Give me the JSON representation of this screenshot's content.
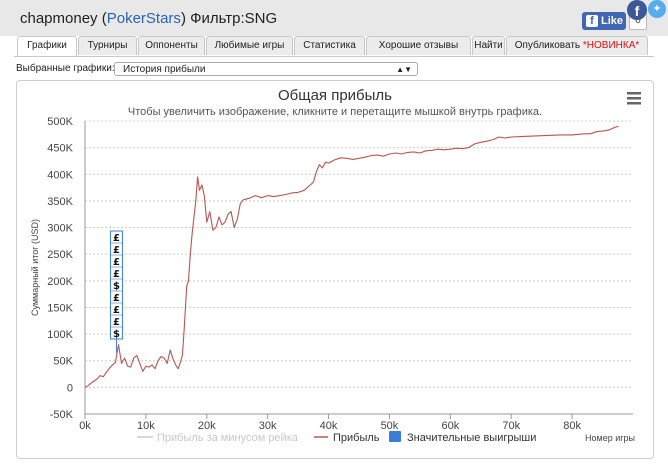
{
  "header": {
    "user": "chapmoney",
    "network": "PokerStars",
    "filter_label": "Фильтр:SNG",
    "fb_like_label": "Like",
    "fb_like_count": "0"
  },
  "tabs": [
    {
      "label": "Графики",
      "active": true
    },
    {
      "label": "Турниры"
    },
    {
      "label": "Оппоненты"
    },
    {
      "label": "Любимые игры"
    },
    {
      "label": "Статистика"
    },
    {
      "label": "Хорошие отзывы"
    },
    {
      "label": "Найти"
    },
    {
      "label": "Опубликовать",
      "badge": "*НОВИНКА*"
    }
  ],
  "graph_select": {
    "label": "Выбранные графики:",
    "value": "История прибыли"
  },
  "colors": {
    "profit_line": "#b85550",
    "minus_rake_line": "#cccccc",
    "big_wins": "#3a7fd5",
    "grid": "#cccccc"
  },
  "chart_data": {
    "type": "line",
    "title": "Общая прибыль",
    "subtitle": "Чтобы увеличить изображение, кликните и перетащите мышкой внутрь графика.",
    "xlabel": "Номер игры",
    "ylabel": "Суммарный итог (USD)",
    "xlim": [
      0,
      90000
    ],
    "ylim": [
      -50000,
      500000
    ],
    "x_ticks": [
      "0k",
      "10k",
      "20k",
      "30k",
      "40k",
      "50k",
      "60k",
      "70k",
      "80k"
    ],
    "y_ticks": [
      "-50K",
      "0",
      "50K",
      "100K",
      "150K",
      "200K",
      "250K",
      "300K",
      "350K",
      "400K",
      "450K",
      "500K"
    ],
    "legend": [
      {
        "name": "Прибыль за минусом рейка",
        "style": "line",
        "disabled": true
      },
      {
        "name": "Прибыль",
        "style": "line"
      },
      {
        "name": "Значительные выигрыши",
        "style": "box"
      }
    ],
    "series": [
      {
        "name": "Прибыль",
        "x": [
          0,
          500,
          1000,
          1500,
          2000,
          2500,
          3000,
          3500,
          4000,
          4500,
          5000,
          5500,
          6000,
          6500,
          7000,
          7500,
          8000,
          8500,
          9000,
          9500,
          10000,
          10500,
          11000,
          11500,
          12000,
          12500,
          13000,
          13500,
          14000,
          14500,
          15000,
          15300,
          15600,
          16000,
          16300,
          16700,
          17000,
          17300,
          17600,
          17900,
          18200,
          18500,
          18800,
          19200,
          19600,
          20000,
          20500,
          21000,
          21500,
          22000,
          22500,
          23000,
          23500,
          24000,
          24500,
          25000,
          25500,
          26000,
          27000,
          28000,
          29000,
          30000,
          31000,
          32000,
          33000,
          34000,
          35000,
          36000,
          37000,
          37500,
          38000,
          38500,
          39000,
          39500,
          40000,
          41000,
          42000,
          43000,
          44000,
          45000,
          46000,
          47000,
          48000,
          49000,
          50000,
          51000,
          52000,
          53000,
          54000,
          55000,
          56000,
          57000,
          58000,
          59000,
          60000,
          61000,
          62000,
          63000,
          64000,
          65000,
          66000,
          67000,
          68000,
          69000,
          70000,
          72000,
          74000,
          76000,
          78000,
          80000,
          82000,
          83000,
          84000,
          85000,
          86000,
          87000,
          87600
        ],
        "values": [
          0,
          3000,
          8000,
          12000,
          16000,
          22000,
          20000,
          28000,
          36000,
          42000,
          47000,
          80000,
          45000,
          55000,
          40000,
          38000,
          55000,
          60000,
          45000,
          30000,
          40000,
          38000,
          42000,
          35000,
          50000,
          58000,
          55000,
          45000,
          70000,
          52000,
          40000,
          35000,
          45000,
          60000,
          110000,
          190000,
          200000,
          250000,
          290000,
          320000,
          350000,
          395000,
          370000,
          380000,
          360000,
          310000,
          330000,
          295000,
          300000,
          320000,
          305000,
          310000,
          325000,
          330000,
          300000,
          315000,
          345000,
          352000,
          355000,
          360000,
          356000,
          360000,
          358000,
          360000,
          362000,
          365000,
          366000,
          370000,
          380000,
          385000,
          405000,
          418000,
          412000,
          423000,
          421000,
          427000,
          431000,
          430000,
          428000,
          430000,
          432000,
          435000,
          436000,
          434000,
          438000,
          440000,
          438000,
          441000,
          442000,
          440000,
          444000,
          445000,
          447000,
          446000,
          447000,
          449000,
          448000,
          450000,
          457000,
          460000,
          462000,
          465000,
          470000,
          468000,
          470000,
          471000,
          472000,
          473000,
          474000,
          474000,
          476000,
          476000,
          480000,
          481000,
          483000,
          488000,
          490000
        ]
      }
    ],
    "big_wins_markers": [
      {
        "x": 5000,
        "glyph": "£"
      },
      {
        "x": 5000,
        "glyph": "£"
      },
      {
        "x": 5000,
        "glyph": "£"
      },
      {
        "x": 5000,
        "glyph": "£"
      },
      {
        "x": 5000,
        "glyph": "$"
      },
      {
        "x": 5000,
        "glyph": "£"
      },
      {
        "x": 5000,
        "glyph": "£"
      },
      {
        "x": 5000,
        "glyph": "£"
      },
      {
        "x": 5000,
        "glyph": "$"
      }
    ]
  }
}
